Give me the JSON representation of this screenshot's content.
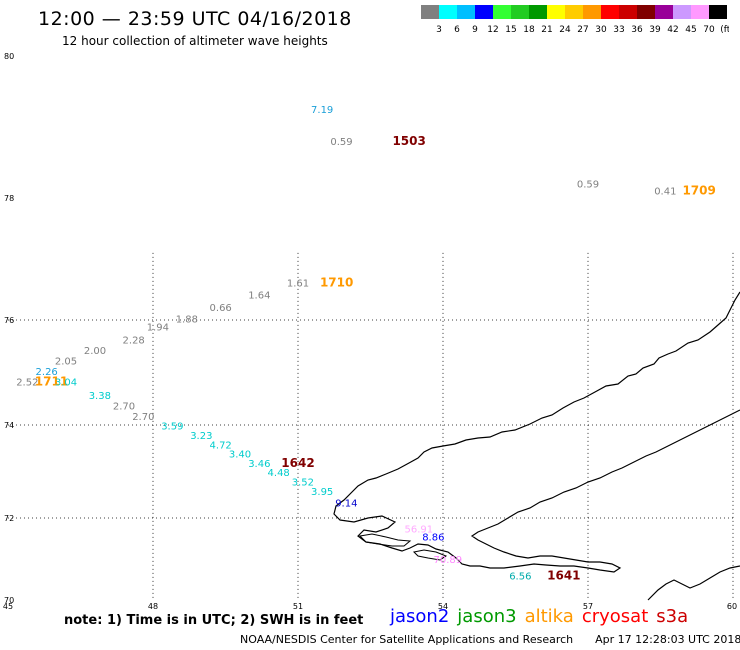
{
  "header": {
    "title": "12:00 — 23:59 UTC 04/16/2018",
    "subtitle": "12 hour collection of altimeter wave heights"
  },
  "color_scale": {
    "labels": [
      "3",
      "6",
      "9",
      "12",
      "15",
      "18",
      "21",
      "24",
      "27",
      "30",
      "33",
      "36",
      "39",
      "42",
      "45",
      "70",
      "(ft)"
    ],
    "colors": [
      "#808080",
      "#00ffff",
      "#00bfff",
      "#0000ff",
      "#33ff33",
      "#22cc22",
      "#009900",
      "#ffff00",
      "#ffcc00",
      "#ff9900",
      "#ff0000",
      "#cc0000",
      "#800000",
      "#990099",
      "#cc99ff",
      "#ff99ff",
      "#000000"
    ]
  },
  "axes": {
    "lat_labels": [
      "80",
      "78",
      "76",
      "74",
      "72",
      "70"
    ],
    "lon_labels": [
      "45",
      "48",
      "51",
      "54",
      "57",
      "60"
    ]
  },
  "observations": [
    {
      "text": "7.19",
      "color": "#1a9fd8",
      "lon": 51.5,
      "lat": 79.2
    },
    {
      "text": "0.59",
      "color": "#808080",
      "lon": 51.9,
      "lat": 78.75,
      "rel": true
    },
    {
      "text": "1503",
      "color": "#800000",
      "lon": 53.3,
      "lat": 78.75,
      "bold": true
    },
    {
      "text": "0.59",
      "color": "#808080",
      "lon": 57.0,
      "lat": 78.15
    },
    {
      "text": "0.41",
      "color": "#808080",
      "lon": 58.6,
      "lat": 78.05
    },
    {
      "text": "1709",
      "color": "#ff9900",
      "lon": 59.3,
      "lat": 78.05,
      "bold": true
    },
    {
      "text": "1.61",
      "color": "#808080",
      "lon": 51.0,
      "lat": 76.55
    },
    {
      "text": "1710",
      "color": "#ff9900",
      "lon": 51.8,
      "lat": 76.55,
      "bold": true
    },
    {
      "text": "1.64",
      "color": "#808080",
      "lon": 50.2,
      "lat": 76.35
    },
    {
      "text": "0.66",
      "color": "#808080",
      "lon": 49.4,
      "lat": 76.15
    },
    {
      "text": "1.88",
      "color": "#808080",
      "lon": 48.7,
      "lat": 75.95
    },
    {
      "text": "1.94",
      "color": "#808080",
      "lon": 48.1,
      "lat": 75.8
    },
    {
      "text": "2.28",
      "color": "#808080",
      "lon": 47.6,
      "lat": 75.55
    },
    {
      "text": "2.00",
      "color": "#808080",
      "lon": 46.8,
      "lat": 75.35
    },
    {
      "text": "2.05",
      "color": "#808080",
      "lon": 46.2,
      "lat": 75.15
    },
    {
      "text": "2.26",
      "color": "#1a9fd8",
      "lon": 45.8,
      "lat": 74.95
    },
    {
      "text": "2.52",
      "color": "#808080",
      "lon": 45.4,
      "lat": 74.75
    },
    {
      "text": "1711",
      "color": "#ff9900",
      "lon": 45.9,
      "lat": 74.75,
      "bold": true
    },
    {
      "text": "3.04",
      "color": "#00cccc",
      "lon": 46.2,
      "lat": 74.75
    },
    {
      "text": "3.38",
      "color": "#00cccc",
      "lon": 46.9,
      "lat": 74.5
    },
    {
      "text": "2.70",
      "color": "#808080",
      "lon": 47.4,
      "lat": 74.3
    },
    {
      "text": "2.70",
      "color": "#808080",
      "lon": 47.8,
      "lat": 74.1
    },
    {
      "text": "3.59",
      "color": "#00cccc",
      "lon": 48.4,
      "lat": 73.9
    },
    {
      "text": "3.23",
      "color": "#00cccc",
      "lon": 49.0,
      "lat": 73.7
    },
    {
      "text": "4.72",
      "color": "#00cccc",
      "lon": 49.4,
      "lat": 73.5
    },
    {
      "text": "3.40",
      "color": "#00cccc",
      "lon": 49.8,
      "lat": 73.3
    },
    {
      "text": "3.46",
      "color": "#00cccc",
      "lon": 50.2,
      "lat": 73.1
    },
    {
      "text": "1642",
      "color": "#800000",
      "lon": 51.0,
      "lat": 73.1,
      "bold": true
    },
    {
      "text": "4.48",
      "color": "#00cccc",
      "lon": 50.6,
      "lat": 72.9
    },
    {
      "text": "3.52",
      "color": "#00cccc",
      "lon": 51.1,
      "lat": 72.7
    },
    {
      "text": "3.95",
      "color": "#00cccc",
      "lon": 51.5,
      "lat": 72.5
    },
    {
      "text": "9.14",
      "color": "#0000cc",
      "lon": 52.0,
      "lat": 72.25
    },
    {
      "text": "56.91",
      "color": "#ffaaff",
      "lon": 53.5,
      "lat": 71.65
    },
    {
      "text": "8.86",
      "color": "#0000ff",
      "lon": 53.8,
      "lat": 71.45
    },
    {
      "text": "70.89",
      "color": "#ff88ff",
      "lon": 54.1,
      "lat": 70.9
    },
    {
      "text": "6.56",
      "color": "#00aaaa",
      "lon": 55.6,
      "lat": 70.5
    },
    {
      "text": "1641",
      "color": "#800000",
      "lon": 56.5,
      "lat": 70.5,
      "bold": true
    }
  ],
  "note": "note:  1) Time is in UTC;  2) SWH is in feet",
  "legend": [
    {
      "label": "jason2",
      "color": "#0000ff"
    },
    {
      "label": "jason3",
      "color": "#009900"
    },
    {
      "label": "altika",
      "color": "#ff9900"
    },
    {
      "label": "cryosat",
      "color": "#ff0000"
    },
    {
      "label": "s3a",
      "color": "#cc0000"
    }
  ],
  "footer": {
    "credit": "NOAA/NESDIS Center for Satellite Applications and Research",
    "timestamp": "Apr 17 12:28:03 UTC 2018"
  }
}
